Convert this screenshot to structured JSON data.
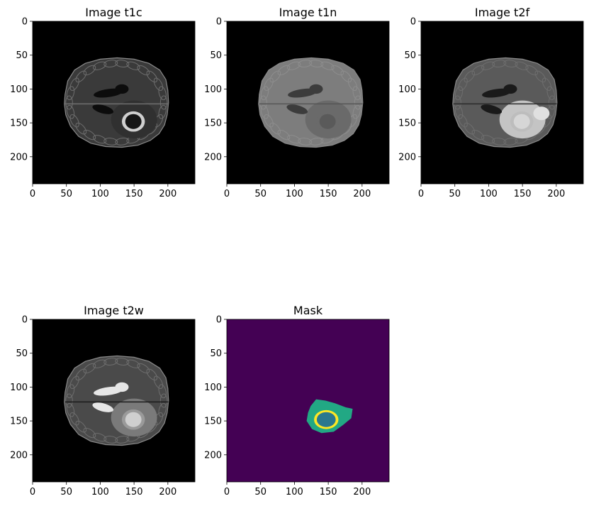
{
  "figure": {
    "panels": [
      {
        "id": "t1c",
        "title": "Image t1c",
        "kind": "t1c"
      },
      {
        "id": "t1n",
        "title": "Image t1n",
        "kind": "t1n"
      },
      {
        "id": "t2f",
        "title": "Image t2f",
        "kind": "t2f"
      },
      {
        "id": "t2w",
        "title": "Image t2w",
        "kind": "t2w"
      },
      {
        "id": "mask",
        "title": "Mask",
        "kind": "mask"
      }
    ],
    "axes": {
      "x_ticks": [
        0,
        50,
        100,
        150,
        200
      ],
      "y_ticks": [
        0,
        50,
        100,
        150,
        200
      ],
      "x_range": [
        0,
        240
      ],
      "y_range": [
        0,
        240
      ]
    },
    "colors": {
      "image_background": "#000000",
      "mask_background": "#440154",
      "mask_edema": "#22a884",
      "mask_enhancing": "#fde725",
      "mask_necrotic": "#2a788e"
    }
  }
}
